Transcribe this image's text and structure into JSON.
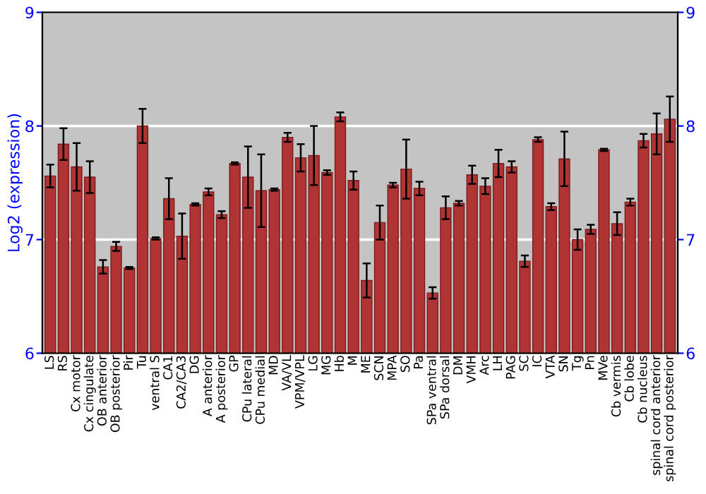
{
  "chart_data": {
    "type": "bar",
    "ylabel": "Log2 (expression)",
    "categories": [
      "LS",
      "RS",
      "Cx motor",
      "Cx cingulate",
      "OB anterior",
      "OB posterior",
      "Pir",
      "Tu",
      "ventral S",
      "CA1",
      "CA2/CA3",
      "DG",
      "A anterior",
      "A posterior",
      "GP",
      "CPu lateral",
      "CPu medial",
      "MD",
      "VA/VL",
      "VPM/VPL",
      "LG",
      "MG",
      "Hb",
      "M",
      "ME",
      "SCN",
      "MPA",
      "SO",
      "Pa",
      "SPa ventral",
      "SPa dorsal",
      "DM",
      "VMH",
      "Arc",
      "LH",
      "PAG",
      "SC",
      "IC",
      "VTA",
      "SN",
      "Tg",
      "Pn",
      "MVe",
      "Cb vermis",
      "Cb lobe",
      "Cb nucleus",
      "spinal cord anterior",
      "spinal cord posterior"
    ],
    "values": [
      7.56,
      7.84,
      7.64,
      7.55,
      6.76,
      6.94,
      6.75,
      8.0,
      7.01,
      7.36,
      7.03,
      7.31,
      7.42,
      7.22,
      7.67,
      7.55,
      7.43,
      7.44,
      7.9,
      7.72,
      7.74,
      7.59,
      8.08,
      7.52,
      6.64,
      7.15,
      7.48,
      7.62,
      7.45,
      6.53,
      7.28,
      7.32,
      7.57,
      7.47,
      7.67,
      7.64,
      6.81,
      7.88,
      7.29,
      7.71,
      7.0,
      7.09,
      7.79,
      7.14,
      7.33,
      7.87,
      7.93,
      8.06
    ],
    "errors": [
      0.1,
      0.14,
      0.21,
      0.14,
      0.06,
      0.04,
      0.01,
      0.15,
      0.01,
      0.18,
      0.2,
      0.01,
      0.03,
      0.03,
      0.01,
      0.27,
      0.32,
      0.01,
      0.04,
      0.12,
      0.26,
      0.02,
      0.04,
      0.08,
      0.15,
      0.15,
      0.02,
      0.26,
      0.06,
      0.05,
      0.1,
      0.02,
      0.08,
      0.07,
      0.12,
      0.05,
      0.05,
      0.02,
      0.03,
      0.24,
      0.09,
      0.04,
      0.01,
      0.1,
      0.03,
      0.06,
      0.18,
      0.2
    ],
    "color": "#b03434",
    "ylim": [
      6,
      9
    ],
    "yticks": [
      6,
      7,
      8,
      9
    ],
    "y2lim": [
      6,
      9
    ],
    "y2ticks": [
      6,
      7,
      8,
      9
    ],
    "grid": "y"
  }
}
